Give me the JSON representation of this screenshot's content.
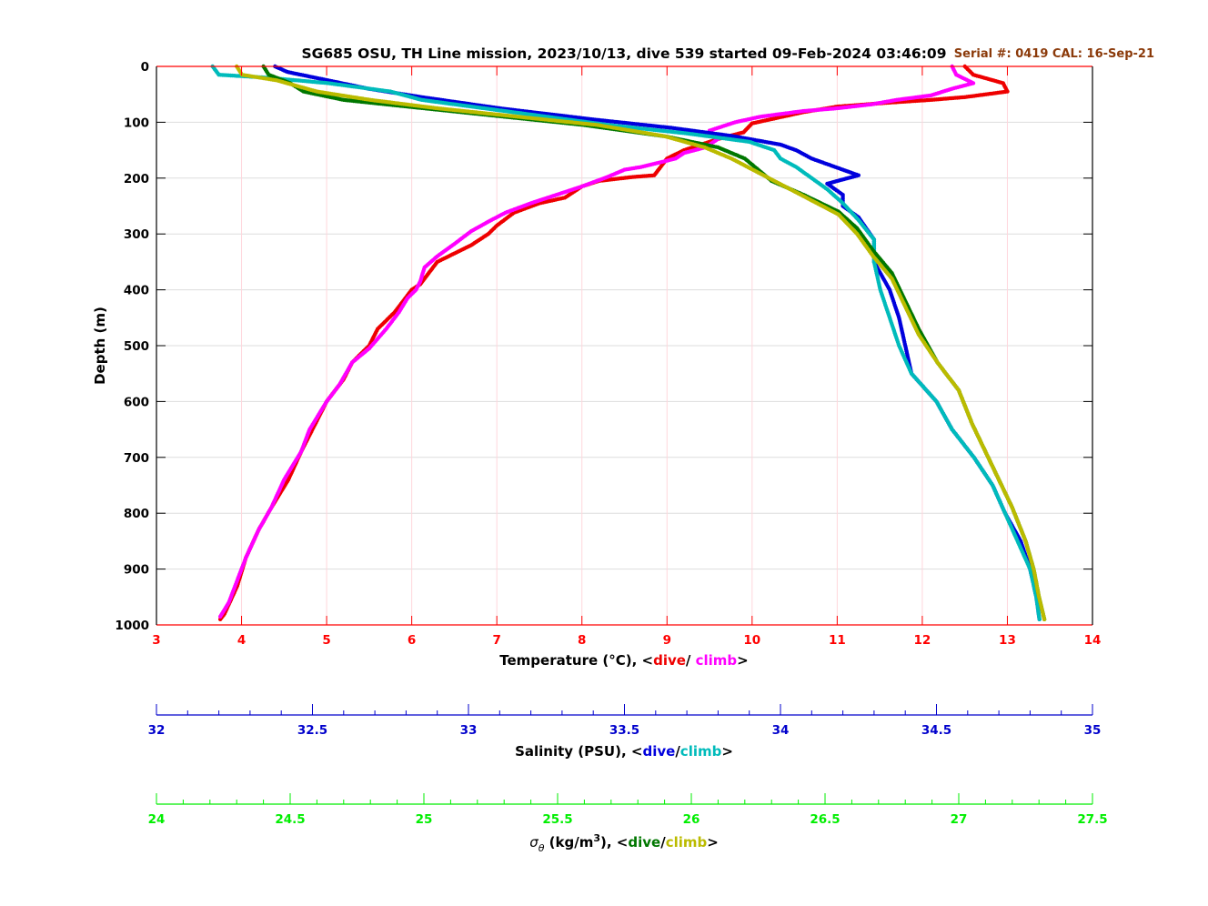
{
  "title": "SG685 OSU, TH Line mission, 2023/10/13, dive 539 started 09-Feb-2024 03:46:09",
  "serial": "Serial #: 0419  CAL: 16-Sep-21",
  "colors": {
    "temp_axis": "#ff0000",
    "sal_axis": "#0000cc",
    "sigma_axis": "#00ee00",
    "temp_dive": "#ee0000",
    "temp_climb": "#ff00ff",
    "sal_dive": "#0000dd",
    "sal_climb": "#00bbbb",
    "sig_dive": "#007700",
    "sig_climb": "#bbbb00",
    "serial": "#8b3a0a"
  },
  "axes": {
    "depth": {
      "label": "Depth (m)",
      "ticks": [
        "0",
        "100",
        "200",
        "300",
        "400",
        "500",
        "600",
        "700",
        "800",
        "900",
        "1000"
      ],
      "range": [
        0,
        1000
      ]
    },
    "temperature": {
      "label_prefix": "Temperature (°C), <",
      "dive_word": "dive",
      "sep": "/ ",
      "climb_word": "climb",
      "label_suffix": ">",
      "ticks": [
        "3",
        "4",
        "5",
        "6",
        "7",
        "8",
        "9",
        "10",
        "11",
        "12",
        "13",
        "14"
      ],
      "range": [
        3,
        14
      ]
    },
    "salinity": {
      "label_prefix": "Salinity (PSU), <",
      "dive_word": "dive",
      "sep": "/",
      "climb_word": "climb",
      "label_suffix": ">",
      "ticks": [
        "32",
        "32.5",
        "33",
        "33.5",
        "34",
        "34.5",
        "35"
      ],
      "range": [
        32,
        35
      ]
    },
    "sigma": {
      "label_symbol": "σ",
      "label_sub": "θ",
      "label_units": " (kg/m",
      "label_sup": "3",
      "label_close": "), <",
      "dive_word": "dive",
      "sep": "/",
      "climb_word": "climb",
      "label_suffix": ">",
      "ticks": [
        "24",
        "24.5",
        "25",
        "25.5",
        "26",
        "26.5",
        "27",
        "27.5"
      ],
      "range": [
        24,
        27.5
      ]
    }
  },
  "chart_data": {
    "type": "scatter",
    "y_axis": "Depth (m)",
    "y_reversed": true,
    "grid": true,
    "series": [
      {
        "name": "Temperature dive",
        "axis": "temperature",
        "color": "#ee0000",
        "points": [
          [
            12.5,
            0
          ],
          [
            12.6,
            15
          ],
          [
            12.95,
            30
          ],
          [
            13.0,
            45
          ],
          [
            12.5,
            55
          ],
          [
            12.1,
            60
          ],
          [
            11.6,
            65
          ],
          [
            11.0,
            72
          ],
          [
            10.6,
            82
          ],
          [
            10.3,
            92
          ],
          [
            10.0,
            102
          ],
          [
            9.9,
            118
          ],
          [
            9.6,
            130
          ],
          [
            9.4,
            140
          ],
          [
            9.2,
            150
          ],
          [
            9.0,
            165
          ],
          [
            8.95,
            175
          ],
          [
            8.85,
            195
          ],
          [
            8.6,
            198
          ],
          [
            8.2,
            205
          ],
          [
            8.0,
            215
          ],
          [
            7.8,
            235
          ],
          [
            7.5,
            245
          ],
          [
            7.2,
            262
          ],
          [
            7.0,
            285
          ],
          [
            6.9,
            300
          ],
          [
            6.7,
            320
          ],
          [
            6.5,
            335
          ],
          [
            6.3,
            350
          ],
          [
            6.2,
            370
          ],
          [
            6.1,
            390
          ],
          [
            6.0,
            400
          ],
          [
            5.9,
            420
          ],
          [
            5.8,
            440
          ],
          [
            5.6,
            470
          ],
          [
            5.5,
            500
          ],
          [
            5.3,
            530
          ],
          [
            5.2,
            560
          ],
          [
            5.0,
            600
          ],
          [
            4.8,
            660
          ],
          [
            4.7,
            690
          ],
          [
            4.55,
            740
          ],
          [
            4.35,
            790
          ],
          [
            4.2,
            830
          ],
          [
            4.05,
            880
          ],
          [
            3.95,
            930
          ],
          [
            3.8,
            980
          ],
          [
            3.75,
            990
          ]
        ]
      },
      {
        "name": "Temperature climb",
        "axis": "temperature",
        "color": "#ff00ff",
        "points": [
          [
            12.35,
            0
          ],
          [
            12.4,
            15
          ],
          [
            12.6,
            30
          ],
          [
            12.35,
            40
          ],
          [
            12.1,
            52
          ],
          [
            11.7,
            60
          ],
          [
            11.4,
            68
          ],
          [
            11.0,
            75
          ],
          [
            10.6,
            80
          ],
          [
            10.1,
            90
          ],
          [
            9.8,
            100
          ],
          [
            9.5,
            115
          ],
          [
            9.6,
            130
          ],
          [
            9.45,
            145
          ],
          [
            9.2,
            155
          ],
          [
            9.1,
            165
          ],
          [
            8.7,
            180
          ],
          [
            8.5,
            185
          ],
          [
            8.3,
            198
          ],
          [
            8.0,
            215
          ],
          [
            7.7,
            230
          ],
          [
            7.4,
            245
          ],
          [
            7.1,
            262
          ],
          [
            6.9,
            278
          ],
          [
            6.7,
            295
          ],
          [
            6.5,
            318
          ],
          [
            6.3,
            340
          ],
          [
            6.15,
            360
          ],
          [
            6.1,
            385
          ],
          [
            6.05,
            400
          ],
          [
            5.95,
            415
          ],
          [
            5.85,
            440
          ],
          [
            5.7,
            470
          ],
          [
            5.5,
            505
          ],
          [
            5.3,
            530
          ],
          [
            5.15,
            570
          ],
          [
            5.0,
            600
          ],
          [
            4.8,
            650
          ],
          [
            4.7,
            690
          ],
          [
            4.5,
            740
          ],
          [
            4.35,
            790
          ],
          [
            4.2,
            830
          ],
          [
            4.05,
            880
          ],
          [
            3.95,
            920
          ],
          [
            3.85,
            960
          ],
          [
            3.75,
            985
          ]
        ]
      },
      {
        "name": "Salinity dive",
        "axis": "salinity",
        "color": "#0000dd",
        "points": [
          [
            32.38,
            0
          ],
          [
            32.42,
            10
          ],
          [
            32.55,
            25
          ],
          [
            32.68,
            40
          ],
          [
            32.85,
            55
          ],
          [
            33.1,
            75
          ],
          [
            33.4,
            95
          ],
          [
            33.65,
            110
          ],
          [
            33.85,
            125
          ],
          [
            34.0,
            140
          ],
          [
            34.05,
            150
          ],
          [
            34.1,
            165
          ],
          [
            34.2,
            185
          ],
          [
            34.25,
            195
          ],
          [
            34.15,
            210
          ],
          [
            34.2,
            230
          ],
          [
            34.2,
            250
          ],
          [
            34.25,
            270
          ],
          [
            34.3,
            310
          ],
          [
            34.3,
            350
          ],
          [
            34.35,
            400
          ],
          [
            34.38,
            450
          ],
          [
            34.4,
            500
          ],
          [
            34.42,
            550
          ],
          [
            34.5,
            600
          ],
          [
            34.55,
            650
          ],
          [
            34.62,
            700
          ],
          [
            34.68,
            750
          ],
          [
            34.72,
            800
          ],
          [
            34.77,
            850
          ],
          [
            34.8,
            900
          ],
          [
            34.82,
            950
          ],
          [
            34.83,
            990
          ]
        ]
      },
      {
        "name": "Salinity climb",
        "axis": "salinity",
        "color": "#00bbbb",
        "points": [
          [
            32.18,
            0
          ],
          [
            32.2,
            15
          ],
          [
            32.35,
            20
          ],
          [
            32.55,
            30
          ],
          [
            32.75,
            45
          ],
          [
            32.85,
            60
          ],
          [
            33.05,
            75
          ],
          [
            33.25,
            90
          ],
          [
            33.45,
            105
          ],
          [
            33.7,
            120
          ],
          [
            33.9,
            135
          ],
          [
            33.98,
            150
          ],
          [
            34.0,
            165
          ],
          [
            34.05,
            180
          ],
          [
            34.1,
            200
          ],
          [
            34.15,
            220
          ],
          [
            34.2,
            245
          ],
          [
            34.25,
            275
          ],
          [
            34.3,
            310
          ],
          [
            34.3,
            350
          ],
          [
            34.32,
            400
          ],
          [
            34.35,
            450
          ],
          [
            34.38,
            500
          ],
          [
            34.42,
            550
          ],
          [
            34.5,
            600
          ],
          [
            34.55,
            650
          ],
          [
            34.62,
            700
          ],
          [
            34.68,
            750
          ],
          [
            34.72,
            800
          ],
          [
            34.76,
            850
          ],
          [
            34.8,
            900
          ],
          [
            34.82,
            950
          ],
          [
            34.83,
            990
          ]
        ]
      },
      {
        "name": "Sigma-theta dive",
        "axis": "sigma",
        "color": "#007700",
        "points": [
          [
            24.4,
            0
          ],
          [
            24.42,
            15
          ],
          [
            24.5,
            30
          ],
          [
            24.55,
            45
          ],
          [
            24.7,
            60
          ],
          [
            25.0,
            75
          ],
          [
            25.3,
            90
          ],
          [
            25.6,
            105
          ],
          [
            25.9,
            125
          ],
          [
            26.1,
            145
          ],
          [
            26.2,
            165
          ],
          [
            26.25,
            185
          ],
          [
            26.3,
            205
          ],
          [
            26.42,
            230
          ],
          [
            26.55,
            260
          ],
          [
            26.62,
            290
          ],
          [
            26.68,
            330
          ],
          [
            26.75,
            370
          ],
          [
            26.8,
            420
          ],
          [
            26.85,
            470
          ],
          [
            26.92,
            530
          ],
          [
            27.0,
            580
          ],
          [
            27.05,
            640
          ],
          [
            27.1,
            690
          ],
          [
            27.15,
            740
          ],
          [
            27.2,
            790
          ],
          [
            27.25,
            850
          ],
          [
            27.28,
            900
          ],
          [
            27.3,
            950
          ],
          [
            27.32,
            990
          ]
        ]
      },
      {
        "name": "Sigma-theta climb",
        "axis": "sigma",
        "color": "#bbbb00",
        "points": [
          [
            24.3,
            0
          ],
          [
            24.32,
            15
          ],
          [
            24.45,
            25
          ],
          [
            24.6,
            45
          ],
          [
            24.8,
            60
          ],
          [
            25.05,
            75
          ],
          [
            25.35,
            90
          ],
          [
            25.65,
            105
          ],
          [
            25.9,
            125
          ],
          [
            26.05,
            145
          ],
          [
            26.15,
            165
          ],
          [
            26.25,
            190
          ],
          [
            26.35,
            215
          ],
          [
            26.45,
            240
          ],
          [
            26.55,
            265
          ],
          [
            26.62,
            300
          ],
          [
            26.68,
            340
          ],
          [
            26.75,
            380
          ],
          [
            26.8,
            430
          ],
          [
            26.85,
            480
          ],
          [
            26.92,
            530
          ],
          [
            27.0,
            580
          ],
          [
            27.05,
            640
          ],
          [
            27.1,
            690
          ],
          [
            27.15,
            740
          ],
          [
            27.2,
            790
          ],
          [
            27.25,
            850
          ],
          [
            27.28,
            900
          ],
          [
            27.3,
            950
          ],
          [
            27.32,
            990
          ]
        ]
      }
    ]
  }
}
